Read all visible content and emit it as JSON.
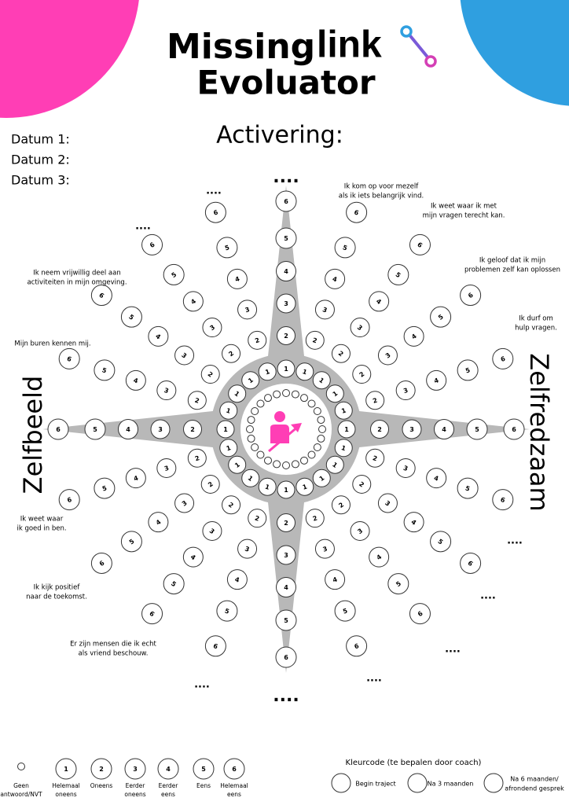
{
  "header": {
    "title_parts": [
      "Missing",
      "link"
    ],
    "subtitle": "Evoluator"
  },
  "dates": [
    "Datum 1:",
    "Datum 2:",
    "Datum 3:"
  ],
  "heading": "Activering:",
  "axis_left": "Zelfbeeld",
  "axis_right": "Zelfredzaam",
  "ellipsis": "....",
  "scale_numbers": [
    1,
    2,
    3,
    4,
    5,
    6
  ],
  "statements": [
    {
      "lines": [
        "Ik kom op voor mezelf",
        "als ik iets belangrijk vind."
      ]
    },
    {
      "lines": [
        "Ik weet waar ik met",
        "mijn vragen terecht kan."
      ]
    },
    {
      "lines": [
        "Ik geloof dat ik mijn",
        "problemen zelf kan oplossen"
      ]
    },
    {
      "lines": [
        "Ik durf om",
        "hulp vragen."
      ]
    },
    {
      "lines": [
        "Ik neem vrijwillig deel aan",
        "activiteiten in mijn omgeving."
      ]
    },
    {
      "lines": [
        "Mijn buren kennen mij."
      ]
    },
    {
      "lines": [
        "Ik weet waar",
        "ik goed in ben."
      ]
    },
    {
      "lines": [
        "Ik kijk positief",
        "naar de toekomst."
      ]
    },
    {
      "lines": [
        "Er zijn mensen die ik echt",
        "als vriend beschouw."
      ]
    }
  ],
  "legend": [
    {
      "lines": [
        "Geen",
        "antwoord/NVT"
      ]
    },
    {
      "lines": [
        "Helemaal",
        "oneens"
      ]
    },
    {
      "lines": [
        "Oneens"
      ]
    },
    {
      "lines": [
        "Eerder",
        "oneens"
      ]
    },
    {
      "lines": [
        "Eerder",
        "eens"
      ]
    },
    {
      "lines": [
        "Eens"
      ]
    },
    {
      "lines": [
        "Helemaal",
        "eens"
      ]
    }
  ],
  "color_code": {
    "title": "Kleurcode (te bepalen door coach)",
    "items": [
      {
        "lines": [
          "Begin traject"
        ]
      },
      {
        "lines": [
          "Na 3 maanden"
        ]
      },
      {
        "lines": [
          "Na 6 maanden/",
          "afrondend gesprek"
        ]
      }
    ]
  }
}
